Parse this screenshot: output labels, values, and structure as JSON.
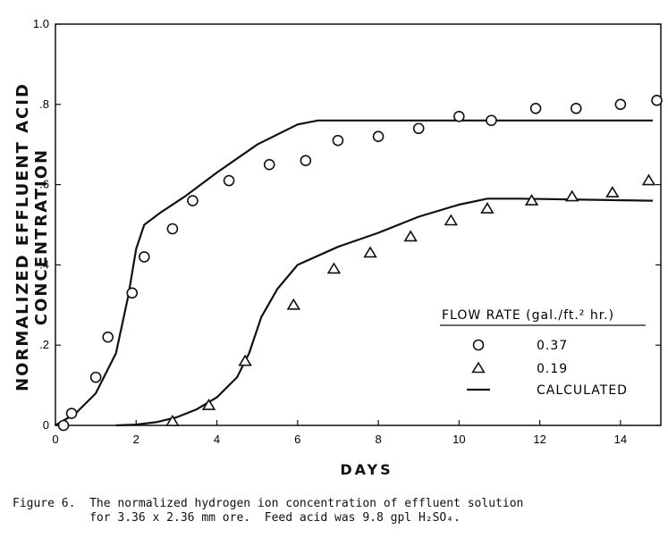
{
  "chart_data": {
    "type": "scatter",
    "xlabel": "DAYS",
    "ylabel": "NORMALIZED EFFLUENT ACID CONCENTRATION",
    "xlim": [
      0,
      15
    ],
    "ylim": [
      0,
      1.0
    ],
    "x_ticks": [
      "0",
      "2",
      "4",
      "6",
      "8",
      "10",
      "12",
      "14"
    ],
    "y_ticks": [
      "0",
      ".2",
      ".4",
      ".6",
      ".8",
      "1.0"
    ],
    "legend": {
      "title": "FLOW RATE (gal./ft.² hr.)",
      "position": "lower-right",
      "entries": [
        "0.37",
        "0.19",
        "CALCULATED"
      ]
    },
    "series": [
      {
        "name": "0.37",
        "marker": "circle",
        "x": [
          0.2,
          0.4,
          1.0,
          1.3,
          1.9,
          2.2,
          2.9,
          3.4,
          4.3,
          5.3,
          6.2,
          7.0,
          8.0,
          9.0,
          10.0,
          10.8,
          11.9,
          12.9,
          14.0,
          14.9
        ],
        "y": [
          0.0,
          0.03,
          0.12,
          0.22,
          0.33,
          0.42,
          0.49,
          0.56,
          0.61,
          0.65,
          0.66,
          0.71,
          0.72,
          0.74,
          0.77,
          0.76,
          0.79,
          0.79,
          0.8,
          0.81
        ]
      },
      {
        "name": "0.19",
        "marker": "triangle",
        "x": [
          2.9,
          3.8,
          4.7,
          5.9,
          6.9,
          7.8,
          8.8,
          9.8,
          10.7,
          11.8,
          12.8,
          13.8,
          14.7
        ],
        "y": [
          0.01,
          0.05,
          0.16,
          0.3,
          0.39,
          0.43,
          0.47,
          0.51,
          0.54,
          0.56,
          0.57,
          0.58,
          0.61
        ]
      },
      {
        "name": "CALCULATED",
        "marker": "line",
        "x": [
          0,
          0.5,
          1.0,
          1.5,
          1.8,
          2.0,
          2.2,
          2.6,
          3.2,
          4.0,
          5.0,
          6.0,
          6.5,
          8.0,
          10.0,
          12.0,
          14.8
        ],
        "y": [
          0.0,
          0.03,
          0.08,
          0.18,
          0.32,
          0.44,
          0.5,
          0.53,
          0.57,
          0.63,
          0.7,
          0.75,
          0.76,
          0.76,
          0.76,
          0.76,
          0.76
        ]
      },
      {
        "name": "CALCULATED",
        "marker": "line",
        "x": [
          1.5,
          2.0,
          2.5,
          3.0,
          3.5,
          4.0,
          4.5,
          4.8,
          5.1,
          5.5,
          6.0,
          7.0,
          8.0,
          9.0,
          10.0,
          10.7,
          11.5,
          14.8
        ],
        "y": [
          0.0,
          0.002,
          0.008,
          0.02,
          0.04,
          0.07,
          0.12,
          0.18,
          0.27,
          0.34,
          0.4,
          0.445,
          0.48,
          0.52,
          0.55,
          0.565,
          0.565,
          0.56
        ]
      }
    ]
  },
  "caption": {
    "line1": "Figure 6.  The normalized hydrogen ion concentration of effluent solution",
    "line2": "           for 3.36 x 2.36 mm ore.  Feed acid was 9.8 gpl H₂SO₄."
  }
}
